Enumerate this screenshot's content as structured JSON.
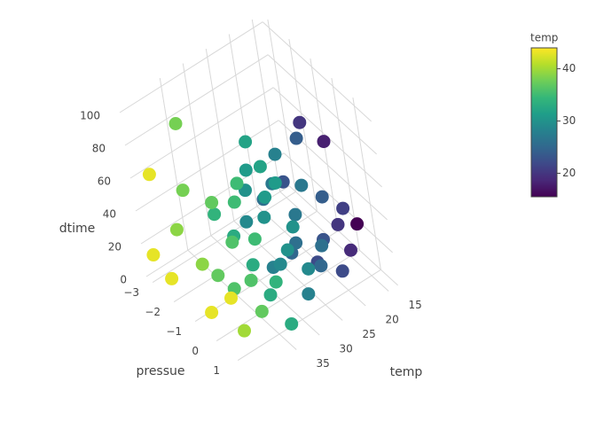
{
  "chart_data": {
    "type": "scatter3d",
    "x_title": "pressue",
    "y_title": "temp",
    "z_title": "dtime",
    "xlim": [
      -3.3,
      1.8
    ],
    "ylim": [
      13,
      44
    ],
    "zlim": [
      0,
      105
    ],
    "xticks": [
      {
        "value": -3,
        "label": "−3"
      },
      {
        "value": -2,
        "label": "−2"
      },
      {
        "value": -1,
        "label": "−1"
      },
      0,
      1
    ],
    "yticks": [
      15,
      20,
      25,
      30,
      35
    ],
    "zticks": [
      0,
      20,
      40,
      60,
      80,
      100
    ],
    "grid": true,
    "colorbar": {
      "title": "temp",
      "cmin": 15.5,
      "cmax": 44,
      "ticks": [
        20,
        30,
        40
      ],
      "colorscale": [
        "#440154",
        "#482878",
        "#3e4989",
        "#31688e",
        "#26828e",
        "#1f9e89",
        "#35b779",
        "#6ece58",
        "#b5de2b",
        "#fde725"
      ]
    },
    "x": [
      -2.5,
      -3.0,
      -2.2,
      -0.3,
      0.9,
      -2.0,
      -2.2,
      -2.6,
      -1.5,
      0.5,
      -1.0,
      -0.5,
      0.2,
      0.8,
      -1.3,
      -0.8,
      0.0,
      -0.3,
      0.5,
      1.0,
      -1.8,
      -1.2,
      -0.4,
      0.3,
      1.2,
      0.0,
      0.6,
      1.0,
      -0.5,
      0.3,
      1.3,
      -1.0,
      -0.2,
      0.8,
      1.5,
      -1.5,
      0.0,
      1.0,
      -0.7,
      0.4,
      1.3,
      -0.3,
      0.7,
      1.6,
      -1.2,
      0.2,
      1.1,
      -0.4,
      0.6,
      1.5,
      -0.8,
      0.9,
      1.4,
      0.1,
      1.7,
      -0.2,
      1.0,
      1.2,
      0.4,
      0.8
    ],
    "y": [
      43,
      43,
      43,
      43,
      43,
      38,
      38,
      39,
      39,
      40,
      37,
      36,
      36,
      37,
      37,
      36,
      35,
      35,
      35,
      34,
      34,
      33,
      33,
      33,
      33,
      32,
      32,
      31,
      31,
      31,
      30,
      30,
      30,
      30,
      29,
      29,
      29,
      28,
      28,
      28,
      27,
      27,
      27,
      26,
      26,
      26,
      25,
      25,
      24,
      24,
      23,
      23,
      22,
      22,
      21,
      20,
      20,
      19,
      18,
      15.5
    ],
    "z": [
      70,
      15,
      10,
      12,
      35,
      98,
      55,
      28,
      20,
      5,
      60,
      40,
      25,
      15,
      12,
      8,
      80,
      65,
      52,
      30,
      38,
      30,
      22,
      12,
      5,
      100,
      92,
      85,
      75,
      68,
      60,
      55,
      48,
      40,
      35,
      28,
      20,
      12,
      8,
      90,
      80,
      62,
      55,
      45,
      40,
      30,
      25,
      15,
      95,
      70,
      50,
      35,
      20,
      10,
      60,
      88,
      40,
      25,
      80,
      30
    ]
  }
}
